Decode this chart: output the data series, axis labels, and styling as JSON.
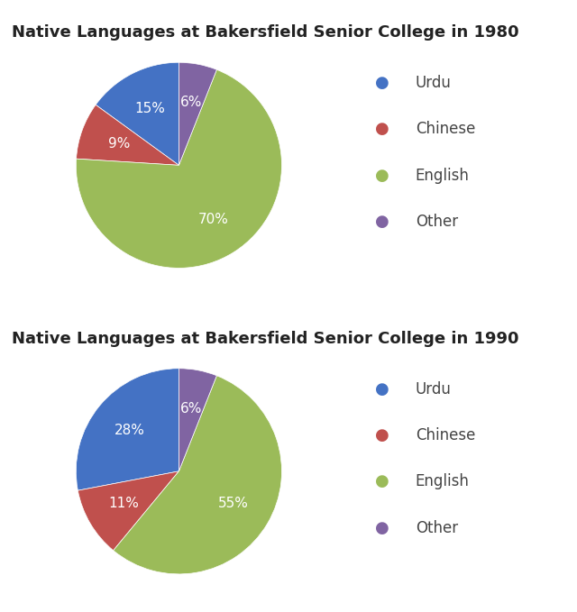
{
  "chart1": {
    "title": "Native Languages at Bakersfield Senior College in 1980",
    "labels": [
      "Urdu",
      "Chinese",
      "English",
      "Other"
    ],
    "values": [
      15,
      9,
      70,
      6
    ],
    "colors": [
      "#4472C4",
      "#C0504D",
      "#9BBB59",
      "#8064A2"
    ],
    "pct_labels": [
      "15%",
      "9%",
      "70%",
      "6%"
    ]
  },
  "chart2": {
    "title": "Native Languages at Bakersfield Senior College in 1990",
    "labels": [
      "Urdu",
      "Chinese",
      "English",
      "Other"
    ],
    "values": [
      28,
      11,
      55,
      6
    ],
    "colors": [
      "#4472C4",
      "#C0504D",
      "#9BBB59",
      "#8064A2"
    ],
    "pct_labels": [
      "28%",
      "11%",
      "55%",
      "6%"
    ]
  },
  "legend_labels": [
    "Urdu",
    "Chinese",
    "English",
    "Other"
  ],
  "legend_colors": [
    "#4472C4",
    "#C0504D",
    "#9BBB59",
    "#8064A2"
  ],
  "bg_color": "#FFFFFF",
  "title_fontsize": 13,
  "label_fontsize": 11,
  "legend_fontsize": 12,
  "startangle": 90
}
